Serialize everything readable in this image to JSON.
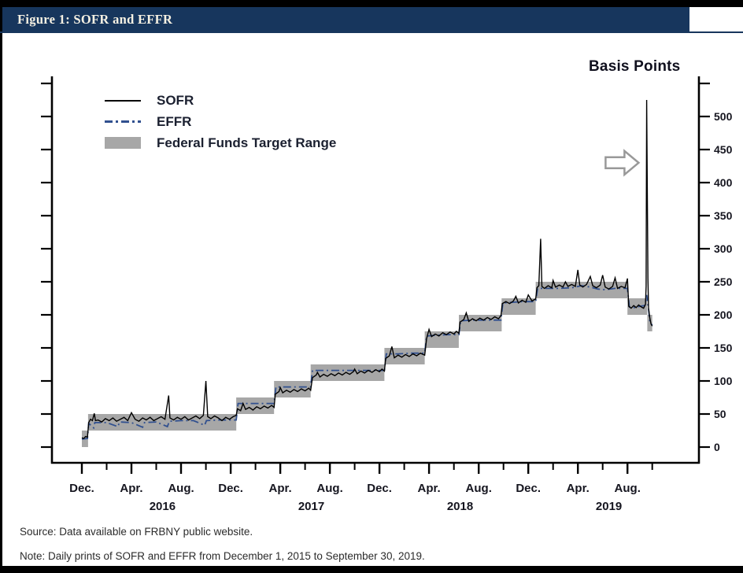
{
  "header": {
    "title": "Figure 1: SOFR and EFFR"
  },
  "footer": {
    "source": "Source: Data available on FRBNY public website.",
    "note": "Note: Daily prints of SOFR and EFFR from December 1, 2015 to September 30, 2019."
  },
  "chart_data": {
    "type": "line",
    "title": "SOFR and EFFR",
    "y_axis": {
      "label": "Basis Points",
      "side": "right",
      "min": 0,
      "max": 560,
      "ticks": [
        {
          "v": 0,
          "label": "0"
        },
        {
          "v": 50,
          "label": "50"
        },
        {
          "v": 100,
          "label": "100"
        },
        {
          "v": 150,
          "label": "150"
        },
        {
          "v": 200,
          "label": "200"
        },
        {
          "v": 250,
          "label": "250"
        },
        {
          "v": 300,
          "label": "300"
        },
        {
          "v": 350,
          "label": "350"
        },
        {
          "v": 400,
          "label": "400"
        },
        {
          "v": 450,
          "label": "450"
        },
        {
          "v": 500,
          "label": "500"
        },
        {
          "v": 550,
          "label": ""
        }
      ]
    },
    "x_axis": {
      "unit": "months since December 2015",
      "range": [
        0,
        46
      ],
      "ticks": [
        {
          "m": 0,
          "label": "Dec."
        },
        {
          "m": 4,
          "label": "Apr."
        },
        {
          "m": 8,
          "label": "Aug."
        },
        {
          "m": 12,
          "label": "Dec."
        },
        {
          "m": 16,
          "label": "Apr."
        },
        {
          "m": 20,
          "label": "Aug."
        },
        {
          "m": 24,
          "label": "Dec."
        },
        {
          "m": 28,
          "label": "Apr."
        },
        {
          "m": 32,
          "label": "Aug."
        },
        {
          "m": 36,
          "label": "Dec."
        },
        {
          "m": 40,
          "label": "Apr."
        },
        {
          "m": 44,
          "label": "Aug."
        }
      ],
      "year_labels": [
        {
          "m": 6.5,
          "label": "2016"
        },
        {
          "m": 18.5,
          "label": "2017"
        },
        {
          "m": 30.5,
          "label": "2018"
        },
        {
          "m": 42.5,
          "label": "2019"
        }
      ]
    },
    "legend": [
      {
        "label": "SOFR",
        "swatch": "solid-black-line"
      },
      {
        "label": "EFFR",
        "swatch": "dash-dot-blue-line"
      },
      {
        "label": "Federal Funds Target Range",
        "swatch": "gray-band"
      }
    ],
    "colors": {
      "sofr": "#000000",
      "effr": "#31508f",
      "band": "#a7a7a7",
      "header_bg": "#17365d",
      "header_text": "#f6f1e3"
    },
    "target_range_steps": [
      [
        0,
        0.5,
        0,
        25
      ],
      [
        0.5,
        12.45,
        25,
        50
      ],
      [
        12.45,
        15.5,
        50,
        75
      ],
      [
        15.5,
        18.45,
        75,
        100
      ],
      [
        18.45,
        24.4,
        100,
        125
      ],
      [
        24.4,
        27.65,
        125,
        150
      ],
      [
        27.65,
        30.4,
        150,
        175
      ],
      [
        30.4,
        33.85,
        175,
        200
      ],
      [
        33.85,
        36.6,
        200,
        225
      ],
      [
        36.6,
        44.0,
        225,
        250
      ],
      [
        44.0,
        45.6,
        200,
        225
      ],
      [
        45.6,
        46.0,
        175,
        200
      ]
    ],
    "series": [
      {
        "name": "SOFR",
        "points": [
          [
            0,
            14
          ],
          [
            0.15,
            13
          ],
          [
            0.3,
            16
          ],
          [
            0.45,
            15
          ],
          [
            0.55,
            37
          ],
          [
            0.7,
            42
          ],
          [
            0.85,
            40
          ],
          [
            1.0,
            51
          ],
          [
            1.1,
            40
          ],
          [
            1.3,
            41
          ],
          [
            1.6,
            38
          ],
          [
            1.9,
            43
          ],
          [
            2.2,
            40
          ],
          [
            2.5,
            44
          ],
          [
            2.8,
            39
          ],
          [
            3.1,
            42
          ],
          [
            3.4,
            45
          ],
          [
            3.7,
            40
          ],
          [
            4.0,
            52
          ],
          [
            4.3,
            42
          ],
          [
            4.6,
            39
          ],
          [
            4.9,
            44
          ],
          [
            5.2,
            41
          ],
          [
            5.5,
            45
          ],
          [
            5.8,
            40
          ],
          [
            6.1,
            43
          ],
          [
            6.4,
            46
          ],
          [
            6.7,
            42
          ],
          [
            7.0,
            78
          ],
          [
            7.1,
            44
          ],
          [
            7.4,
            41
          ],
          [
            7.7,
            45
          ],
          [
            8.0,
            42
          ],
          [
            8.3,
            46
          ],
          [
            8.6,
            41
          ],
          [
            8.9,
            44
          ],
          [
            9.2,
            47
          ],
          [
            9.5,
            43
          ],
          [
            9.8,
            48
          ],
          [
            10.0,
            100
          ],
          [
            10.15,
            46
          ],
          [
            10.4,
            43
          ],
          [
            10.7,
            47
          ],
          [
            11.0,
            44
          ],
          [
            11.3,
            40
          ],
          [
            11.6,
            45
          ],
          [
            11.9,
            42
          ],
          [
            12.2,
            46
          ],
          [
            12.45,
            48
          ],
          [
            12.55,
            58
          ],
          [
            12.8,
            55
          ],
          [
            13.0,
            66
          ],
          [
            13.2,
            57
          ],
          [
            13.5,
            60
          ],
          [
            13.8,
            56
          ],
          [
            14.1,
            61
          ],
          [
            14.4,
            58
          ],
          [
            14.7,
            62
          ],
          [
            15.0,
            59
          ],
          [
            15.3,
            63
          ],
          [
            15.5,
            60
          ],
          [
            15.6,
            80
          ],
          [
            15.9,
            84
          ],
          [
            16.0,
            90
          ],
          [
            16.2,
            82
          ],
          [
            16.5,
            86
          ],
          [
            16.8,
            83
          ],
          [
            17.1,
            87
          ],
          [
            17.4,
            84
          ],
          [
            17.7,
            88
          ],
          [
            18.0,
            85
          ],
          [
            18.3,
            89
          ],
          [
            18.45,
            86
          ],
          [
            18.6,
            105
          ],
          [
            18.9,
            109
          ],
          [
            19.0,
            113
          ],
          [
            19.2,
            106
          ],
          [
            19.5,
            110
          ],
          [
            19.8,
            107
          ],
          [
            20.1,
            111
          ],
          [
            20.4,
            108
          ],
          [
            20.7,
            112
          ],
          [
            21.0,
            109
          ],
          [
            21.3,
            113
          ],
          [
            21.6,
            110
          ],
          [
            21.9,
            114
          ],
          [
            22.0,
            118
          ],
          [
            22.2,
            111
          ],
          [
            22.5,
            115
          ],
          [
            22.8,
            112
          ],
          [
            23.1,
            116
          ],
          [
            23.4,
            113
          ],
          [
            23.7,
            117
          ],
          [
            24.0,
            114
          ],
          [
            24.2,
            118
          ],
          [
            24.4,
            115
          ],
          [
            24.5,
            134
          ],
          [
            24.8,
            138
          ],
          [
            25.0,
            152
          ],
          [
            25.2,
            135
          ],
          [
            25.5,
            139
          ],
          [
            25.8,
            136
          ],
          [
            26.1,
            140
          ],
          [
            26.4,
            137
          ],
          [
            26.7,
            141
          ],
          [
            27.0,
            138
          ],
          [
            27.3,
            142
          ],
          [
            27.65,
            139
          ],
          [
            27.8,
            164
          ],
          [
            28.0,
            178
          ],
          [
            28.2,
            167
          ],
          [
            28.5,
            171
          ],
          [
            28.8,
            168
          ],
          [
            29.1,
            173
          ],
          [
            29.4,
            170
          ],
          [
            29.7,
            174
          ],
          [
            30.0,
            171
          ],
          [
            30.2,
            175
          ],
          [
            30.4,
            172
          ],
          [
            30.5,
            189
          ],
          [
            30.8,
            193
          ],
          [
            31.0,
            203
          ],
          [
            31.2,
            190
          ],
          [
            31.5,
            194
          ],
          [
            31.8,
            191
          ],
          [
            32.1,
            195
          ],
          [
            32.4,
            192
          ],
          [
            32.7,
            196
          ],
          [
            33.0,
            193
          ],
          [
            33.3,
            197
          ],
          [
            33.6,
            194
          ],
          [
            33.8,
            199
          ],
          [
            33.9,
            217
          ],
          [
            34.2,
            220
          ],
          [
            34.5,
            217
          ],
          [
            34.8,
            221
          ],
          [
            35.0,
            228
          ],
          [
            35.2,
            218
          ],
          [
            35.5,
            222
          ],
          [
            35.8,
            219
          ],
          [
            36.0,
            230
          ],
          [
            36.3,
            221
          ],
          [
            36.6,
            224
          ],
          [
            36.7,
            241
          ],
          [
            36.85,
            244
          ],
          [
            37.0,
            315
          ],
          [
            37.1,
            243
          ],
          [
            37.3,
            240
          ],
          [
            37.6,
            244
          ],
          [
            37.9,
            241
          ],
          [
            38.0,
            252
          ],
          [
            38.2,
            242
          ],
          [
            38.5,
            245
          ],
          [
            38.8,
            242
          ],
          [
            39.0,
            250
          ],
          [
            39.2,
            243
          ],
          [
            39.5,
            246
          ],
          [
            39.8,
            243
          ],
          [
            40.0,
            268
          ],
          [
            40.15,
            245
          ],
          [
            40.4,
            242
          ],
          [
            40.7,
            246
          ],
          [
            41.0,
            258
          ],
          [
            41.2,
            244
          ],
          [
            41.5,
            241
          ],
          [
            41.8,
            245
          ],
          [
            42.0,
            260
          ],
          [
            42.2,
            242
          ],
          [
            42.5,
            239
          ],
          [
            42.8,
            243
          ],
          [
            43.0,
            256
          ],
          [
            43.2,
            240
          ],
          [
            43.5,
            243
          ],
          [
            43.8,
            241
          ],
          [
            44.0,
            255
          ],
          [
            44.1,
            213
          ],
          [
            44.3,
            210
          ],
          [
            44.5,
            214
          ],
          [
            44.7,
            211
          ],
          [
            44.9,
            215
          ],
          [
            45.1,
            212
          ],
          [
            45.3,
            210
          ],
          [
            45.45,
            216
          ],
          [
            45.5,
            243
          ],
          [
            45.55,
            525
          ],
          [
            45.65,
            255
          ],
          [
            45.7,
            210
          ],
          [
            45.8,
            195
          ],
          [
            45.9,
            186
          ],
          [
            46.0,
            183
          ]
        ]
      },
      {
        "name": "EFFR",
        "points": [
          [
            0,
            12
          ],
          [
            0.45,
            13
          ],
          [
            0.55,
            36
          ],
          [
            0.95,
            29
          ],
          [
            1.05,
            37
          ],
          [
            2.0,
            37
          ],
          [
            2.9,
            31
          ],
          [
            3.05,
            38
          ],
          [
            4.0,
            37
          ],
          [
            4.9,
            30
          ],
          [
            5.05,
            37
          ],
          [
            6.0,
            38
          ],
          [
            6.9,
            31
          ],
          [
            7.05,
            39
          ],
          [
            8.0,
            40
          ],
          [
            9.0,
            40
          ],
          [
            9.9,
            33
          ],
          [
            10.05,
            40
          ],
          [
            11.0,
            41
          ],
          [
            12.0,
            41
          ],
          [
            12.45,
            41
          ],
          [
            12.6,
            66
          ],
          [
            13.5,
            66
          ],
          [
            14.5,
            66
          ],
          [
            15.5,
            66
          ],
          [
            15.65,
            91
          ],
          [
            16.5,
            91
          ],
          [
            17.5,
            91
          ],
          [
            18.45,
            91
          ],
          [
            18.6,
            116
          ],
          [
            19.5,
            116
          ],
          [
            20.5,
            116
          ],
          [
            21.5,
            116
          ],
          [
            22.5,
            116
          ],
          [
            23.5,
            116
          ],
          [
            24.4,
            116
          ],
          [
            24.55,
            141
          ],
          [
            25.5,
            141
          ],
          [
            26.5,
            142
          ],
          [
            27.65,
            142
          ],
          [
            27.8,
            168
          ],
          [
            28.5,
            169
          ],
          [
            29.5,
            170
          ],
          [
            30.4,
            170
          ],
          [
            30.55,
            191
          ],
          [
            31.5,
            192
          ],
          [
            32.5,
            192
          ],
          [
            33.8,
            192
          ],
          [
            33.95,
            218
          ],
          [
            34.8,
            219
          ],
          [
            35.5,
            220
          ],
          [
            36.6,
            220
          ],
          [
            36.75,
            240
          ],
          [
            37.5,
            240
          ],
          [
            38.5,
            240
          ],
          [
            39.5,
            241
          ],
          [
            40.3,
            244
          ],
          [
            41.0,
            242
          ],
          [
            41.6,
            239
          ],
          [
            42.2,
            238
          ],
          [
            43.0,
            240
          ],
          [
            44.0,
            240
          ],
          [
            44.15,
            212
          ],
          [
            44.6,
            211
          ],
          [
            45.0,
            213
          ],
          [
            45.4,
            214
          ],
          [
            45.55,
            230
          ],
          [
            45.7,
            209
          ],
          [
            45.8,
            190
          ],
          [
            46.0,
            184
          ]
        ]
      }
    ],
    "annotations": [
      {
        "type": "arrow-right",
        "x_month": 44.9,
        "y_bp": 430
      }
    ]
  }
}
